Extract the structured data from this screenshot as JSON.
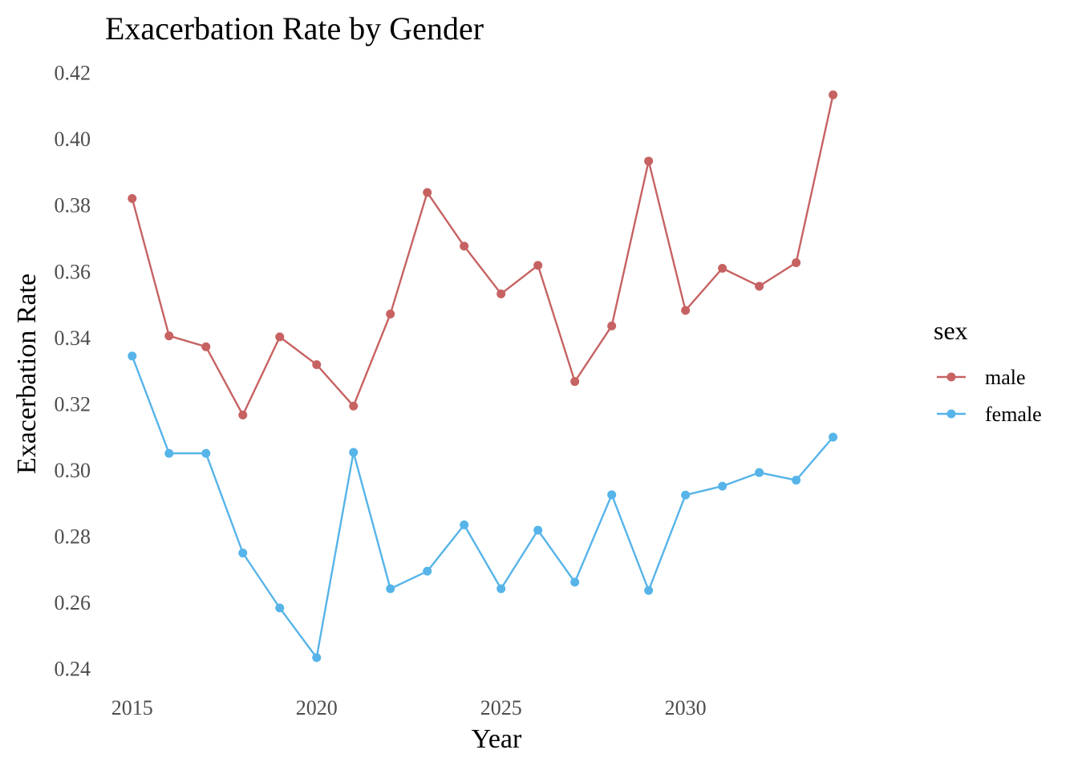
{
  "chart_data": {
    "type": "line",
    "title": "Exacerbation Rate by Gender",
    "xlabel": "Year",
    "ylabel": "Exacerbation Rate",
    "x": [
      2015,
      2016,
      2017,
      2018,
      2019,
      2020,
      2021,
      2022,
      2023,
      2024,
      2025,
      2026,
      2027,
      2028,
      2029,
      2030,
      2031,
      2032,
      2033,
      2034
    ],
    "series": [
      {
        "name": "male",
        "color": "#c76262",
        "values": [
          0.382,
          0.3405,
          0.3372,
          0.3166,
          0.3402,
          0.3318,
          0.3193,
          0.3471,
          0.3838,
          0.3676,
          0.3532,
          0.3618,
          0.3267,
          0.3435,
          0.3933,
          0.3482,
          0.3609,
          0.3555,
          0.3626,
          0.4133
        ]
      },
      {
        "name": "female",
        "color": "#56b4e9",
        "values": [
          0.3344,
          0.305,
          0.305,
          0.2749,
          0.2583,
          0.2433,
          0.3053,
          0.2641,
          0.2694,
          0.2834,
          0.2641,
          0.2818,
          0.2661,
          0.2925,
          0.2636,
          0.2924,
          0.2951,
          0.2992,
          0.2969,
          0.3099
        ]
      }
    ],
    "xticks": [
      "2015",
      "2020",
      "2025",
      "2030"
    ],
    "xtick_values": [
      2015,
      2020,
      2025,
      2030
    ],
    "yticks": [
      "0.24",
      "0.26",
      "0.28",
      "0.30",
      "0.32",
      "0.34",
      "0.36",
      "0.38",
      "0.40",
      "0.42"
    ],
    "ytick_values": [
      0.24,
      0.26,
      0.28,
      0.3,
      0.32,
      0.34,
      0.36,
      0.38,
      0.4,
      0.42
    ],
    "xlim": [
      2014.2,
      2034.9
    ],
    "ylim": [
      0.236,
      0.425
    ],
    "grid": false,
    "legend": {
      "title": "sex",
      "placement": "right"
    }
  }
}
